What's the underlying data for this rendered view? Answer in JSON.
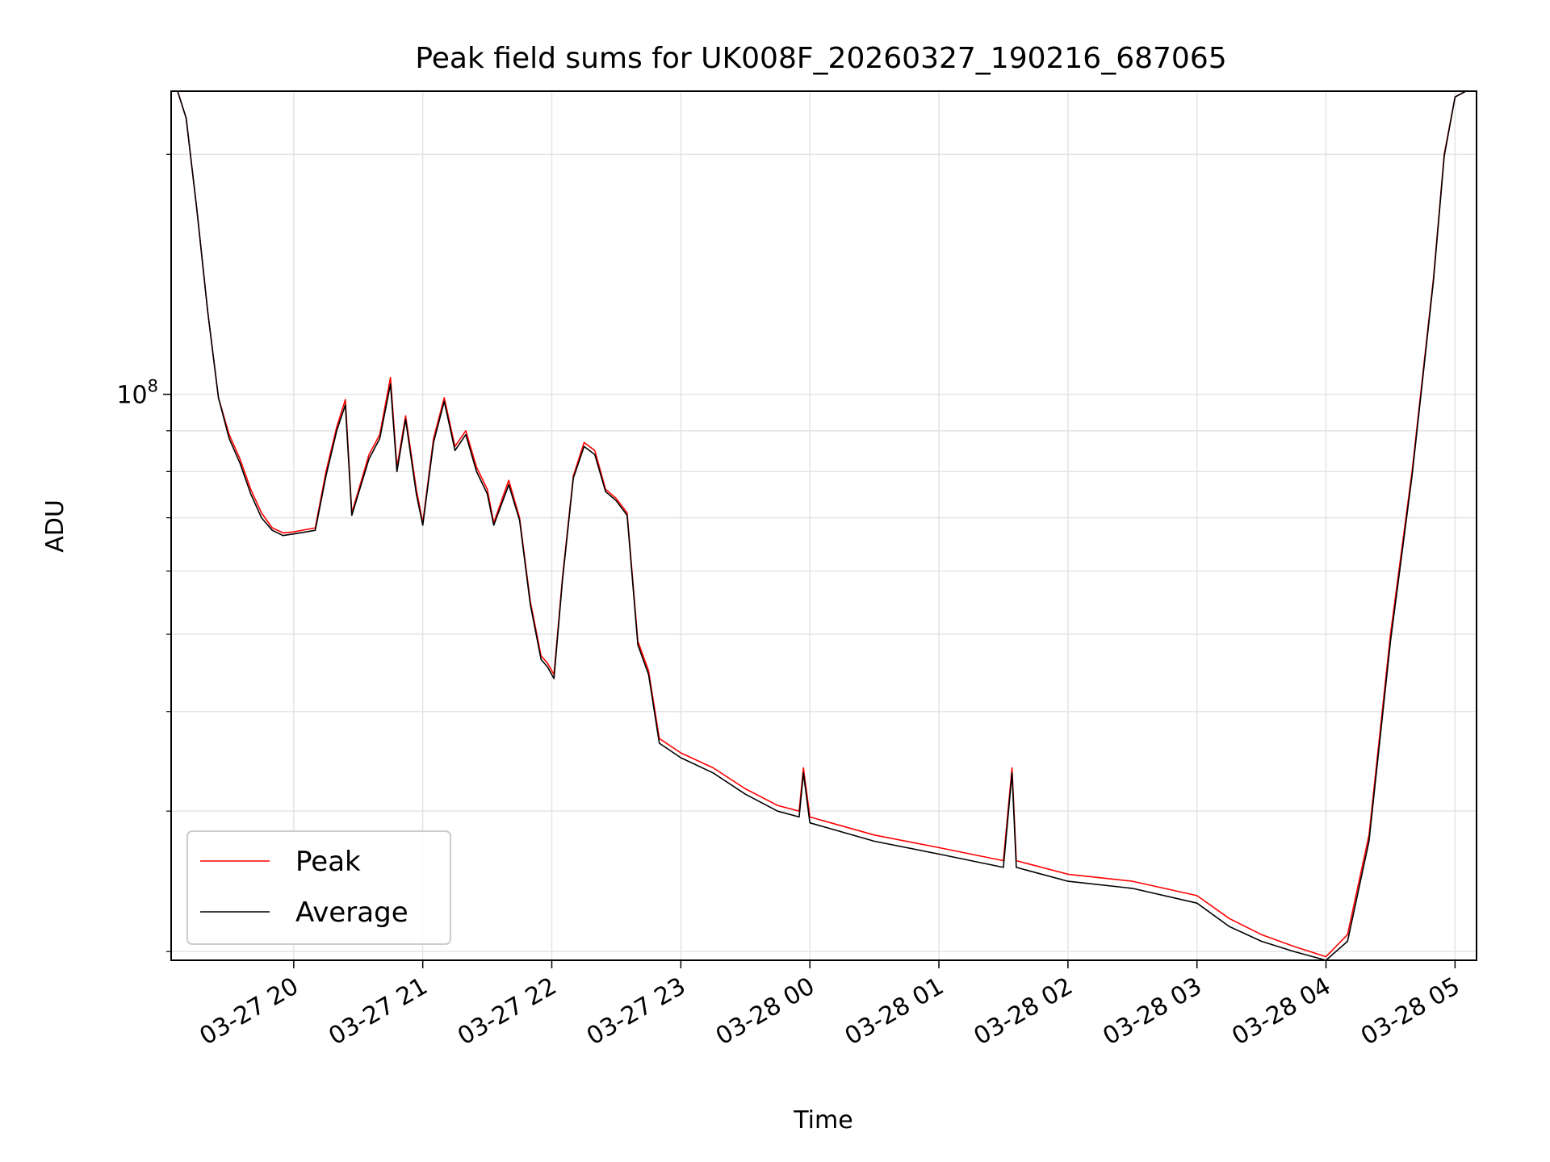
{
  "chart_data": {
    "type": "line",
    "title": "Peak field sums for UK008F_20260327_190216_687065",
    "xlabel": "Time",
    "ylabel": "ADU",
    "x_axis": {
      "kind": "datetime",
      "range": [
        "2026-03-27 19:03",
        "2026-03-28 05:10"
      ],
      "ticks": [
        "03-27 20",
        "03-27 21",
        "03-27 22",
        "03-27 23",
        "03-28 00",
        "03-28 01",
        "03-28 02",
        "03-28 03",
        "03-28 04",
        "03-28 05"
      ],
      "tick_times": [
        "2026-03-27 20:00",
        "2026-03-27 21:00",
        "2026-03-27 22:00",
        "2026-03-27 23:00",
        "2026-03-28 00:00",
        "2026-03-28 01:00",
        "2026-03-28 02:00",
        "2026-03-28 03:00",
        "2026-03-28 04:00",
        "2026-03-28 05:00"
      ],
      "tick_rotation_deg": 30
    },
    "y_axis": {
      "scale": "log",
      "range": [
        19500000,
        240000000
      ],
      "major_tick": 100000000,
      "major_tick_label": {
        "base": "10",
        "exponent": "8"
      },
      "minor_ticks": [
        20000000,
        30000000,
        40000000,
        50000000,
        60000000,
        70000000,
        80000000,
        90000000,
        200000000
      ]
    },
    "grid": true,
    "legend": "lower left",
    "series": [
      {
        "name": "Peak",
        "color": "#ff0000",
        "points": [
          [
            "2026-03-27 19:06",
            240000000
          ],
          [
            "2026-03-27 19:10",
            222000000
          ],
          [
            "2026-03-27 19:15",
            170000000
          ],
          [
            "2026-03-27 19:20",
            127000000
          ],
          [
            "2026-03-27 19:25",
            99000000
          ],
          [
            "2026-03-27 19:30",
            89000000
          ],
          [
            "2026-03-27 19:35",
            83000000
          ],
          [
            "2026-03-27 19:40",
            76000000
          ],
          [
            "2026-03-27 19:45",
            71000000
          ],
          [
            "2026-03-27 19:50",
            68000000
          ],
          [
            "2026-03-27 19:55",
            67000000
          ],
          [
            "2026-03-27 20:00",
            67200000
          ],
          [
            "2026-03-27 20:10",
            68000000
          ],
          [
            "2026-03-27 20:15",
            80000000
          ],
          [
            "2026-03-27 20:20",
            91000000
          ],
          [
            "2026-03-27 20:24",
            98500000
          ],
          [
            "2026-03-27 20:27",
            71000000
          ],
          [
            "2026-03-27 20:35",
            84000000
          ],
          [
            "2026-03-27 20:40",
            89000000
          ],
          [
            "2026-03-27 20:45",
            105000000
          ],
          [
            "2026-03-27 20:48",
            81000000
          ],
          [
            "2026-03-27 20:52",
            94000000
          ],
          [
            "2026-03-27 20:57",
            76000000
          ],
          [
            "2026-03-27 21:00",
            69000000
          ],
          [
            "2026-03-27 21:05",
            88000000
          ],
          [
            "2026-03-27 21:10",
            99000000
          ],
          [
            "2026-03-27 21:15",
            86000000
          ],
          [
            "2026-03-27 21:20",
            90000000
          ],
          [
            "2026-03-27 21:25",
            81000000
          ],
          [
            "2026-03-27 21:30",
            76000000
          ],
          [
            "2026-03-27 21:33",
            69000000
          ],
          [
            "2026-03-27 21:40",
            78000000
          ],
          [
            "2026-03-27 21:45",
            70000000
          ],
          [
            "2026-03-27 21:50",
            55000000
          ],
          [
            "2026-03-27 21:55",
            47000000
          ],
          [
            "2026-03-27 21:58",
            46000000
          ],
          [
            "2026-03-27 22:01",
            44500000
          ],
          [
            "2026-03-27 22:05",
            59000000
          ],
          [
            "2026-03-27 22:10",
            79000000
          ],
          [
            "2026-03-27 22:15",
            87000000
          ],
          [
            "2026-03-27 22:20",
            85000000
          ],
          [
            "2026-03-27 22:25",
            76000000
          ],
          [
            "2026-03-27 22:30",
            74000000
          ],
          [
            "2026-03-27 22:35",
            71000000
          ],
          [
            "2026-03-27 22:40",
            49000000
          ],
          [
            "2026-03-27 22:45",
            45000000
          ],
          [
            "2026-03-27 22:50",
            37000000
          ],
          [
            "2026-03-27 23:00",
            35500000
          ],
          [
            "2026-03-27 23:15",
            34000000
          ],
          [
            "2026-03-27 23:30",
            32000000
          ],
          [
            "2026-03-27 23:45",
            30500000
          ],
          [
            "2026-03-27 23:55",
            30000000
          ],
          [
            "2026-03-27 23:57",
            34000000
          ],
          [
            "2026-03-28 00:00",
            29500000
          ],
          [
            "2026-03-28 00:30",
            28000000
          ],
          [
            "2026-03-28 01:00",
            27000000
          ],
          [
            "2026-03-28 01:30",
            26000000
          ],
          [
            "2026-03-28 01:34",
            34000000
          ],
          [
            "2026-03-28 01:36",
            26000000
          ],
          [
            "2026-03-28 02:00",
            25000000
          ],
          [
            "2026-03-28 02:30",
            24500000
          ],
          [
            "2026-03-28 03:00",
            23500000
          ],
          [
            "2026-03-28 03:15",
            22000000
          ],
          [
            "2026-03-28 03:30",
            21000000
          ],
          [
            "2026-03-28 03:45",
            20300000
          ],
          [
            "2026-03-28 04:00",
            19700000
          ],
          [
            "2026-03-28 04:10",
            21000000
          ],
          [
            "2026-03-28 04:20",
            28000000
          ],
          [
            "2026-03-28 04:30",
            50000000
          ],
          [
            "2026-03-28 04:40",
            80000000
          ],
          [
            "2026-03-28 04:50",
            140000000
          ],
          [
            "2026-03-28 04:55",
            200000000
          ],
          [
            "2026-03-28 05:00",
            236000000
          ],
          [
            "2026-03-28 05:05",
            240000000
          ]
        ]
      },
      {
        "name": "Average",
        "color": "#000000",
        "points": [
          [
            "2026-03-27 19:06",
            240000000
          ],
          [
            "2026-03-27 19:10",
            222000000
          ],
          [
            "2026-03-27 19:15",
            170000000
          ],
          [
            "2026-03-27 19:20",
            127000000
          ],
          [
            "2026-03-27 19:25",
            99000000
          ],
          [
            "2026-03-27 19:30",
            88000000
          ],
          [
            "2026-03-27 19:35",
            82000000
          ],
          [
            "2026-03-27 19:40",
            75000000
          ],
          [
            "2026-03-27 19:45",
            70000000
          ],
          [
            "2026-03-27 19:50",
            67500000
          ],
          [
            "2026-03-27 19:55",
            66500000
          ],
          [
            "2026-03-27 20:00",
            66800000
          ],
          [
            "2026-03-27 20:10",
            67500000
          ],
          [
            "2026-03-27 20:15",
            79000000
          ],
          [
            "2026-03-27 20:20",
            90000000
          ],
          [
            "2026-03-27 20:24",
            97000000
          ],
          [
            "2026-03-27 20:27",
            70500000
          ],
          [
            "2026-03-27 20:35",
            83000000
          ],
          [
            "2026-03-27 20:40",
            88000000
          ],
          [
            "2026-03-27 20:45",
            103000000
          ],
          [
            "2026-03-27 20:48",
            80000000
          ],
          [
            "2026-03-27 20:52",
            93000000
          ],
          [
            "2026-03-27 20:57",
            75000000
          ],
          [
            "2026-03-27 21:00",
            68500000
          ],
          [
            "2026-03-27 21:05",
            87000000
          ],
          [
            "2026-03-27 21:10",
            98000000
          ],
          [
            "2026-03-27 21:15",
            85000000
          ],
          [
            "2026-03-27 21:20",
            89000000
          ],
          [
            "2026-03-27 21:25",
            80000000
          ],
          [
            "2026-03-27 21:30",
            75000000
          ],
          [
            "2026-03-27 21:33",
            68500000
          ],
          [
            "2026-03-27 21:40",
            77000000
          ],
          [
            "2026-03-27 21:45",
            69500000
          ],
          [
            "2026-03-27 21:50",
            54500000
          ],
          [
            "2026-03-27 21:55",
            46500000
          ],
          [
            "2026-03-27 21:58",
            45500000
          ],
          [
            "2026-03-27 22:01",
            44000000
          ],
          [
            "2026-03-27 22:05",
            58500000
          ],
          [
            "2026-03-27 22:10",
            78500000
          ],
          [
            "2026-03-27 22:15",
            86000000
          ],
          [
            "2026-03-27 22:20",
            84000000
          ],
          [
            "2026-03-27 22:25",
            75500000
          ],
          [
            "2026-03-27 22:30",
            73500000
          ],
          [
            "2026-03-27 22:35",
            70500000
          ],
          [
            "2026-03-27 22:40",
            48500000
          ],
          [
            "2026-03-27 22:45",
            44500000
          ],
          [
            "2026-03-27 22:50",
            36500000
          ],
          [
            "2026-03-27 23:00",
            35000000
          ],
          [
            "2026-03-27 23:15",
            33500000
          ],
          [
            "2026-03-27 23:30",
            31500000
          ],
          [
            "2026-03-27 23:45",
            30000000
          ],
          [
            "2026-03-27 23:55",
            29500000
          ],
          [
            "2026-03-27 23:57",
            33500000
          ],
          [
            "2026-03-28 00:00",
            29000000
          ],
          [
            "2026-03-28 00:30",
            27500000
          ],
          [
            "2026-03-28 01:00",
            26500000
          ],
          [
            "2026-03-28 01:30",
            25500000
          ],
          [
            "2026-03-28 01:34",
            33500000
          ],
          [
            "2026-03-28 01:36",
            25500000
          ],
          [
            "2026-03-28 02:00",
            24500000
          ],
          [
            "2026-03-28 02:30",
            24000000
          ],
          [
            "2026-03-28 03:00",
            23000000
          ],
          [
            "2026-03-28 03:15",
            21500000
          ],
          [
            "2026-03-28 03:30",
            20600000
          ],
          [
            "2026-03-28 03:45",
            20000000
          ],
          [
            "2026-03-28 04:00",
            19500000
          ],
          [
            "2026-03-28 04:10",
            20600000
          ],
          [
            "2026-03-28 04:20",
            27500000
          ],
          [
            "2026-03-28 04:30",
            49000000
          ],
          [
            "2026-03-28 04:40",
            79000000
          ],
          [
            "2026-03-28 04:50",
            139000000
          ],
          [
            "2026-03-28 04:55",
            199000000
          ],
          [
            "2026-03-28 05:00",
            236000000
          ],
          [
            "2026-03-28 05:05",
            240000000
          ]
        ]
      }
    ]
  }
}
